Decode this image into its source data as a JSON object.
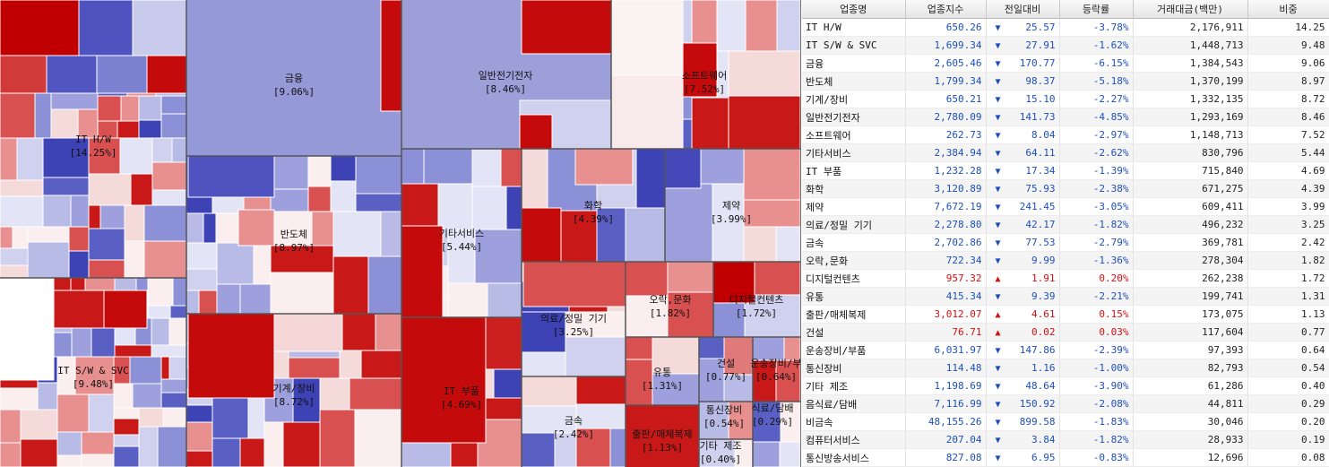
{
  "treemap": {
    "sectors": [
      {
        "name": "IT H/W",
        "weight": "[14.25%]"
      },
      {
        "name": "IT S/W & SVC",
        "weight": "[9.48%]"
      },
      {
        "name": "금융",
        "weight": "[9.06%]"
      },
      {
        "name": "반도체",
        "weight": "[8.97%]"
      },
      {
        "name": "기계/장비",
        "weight": "[8.72%]"
      },
      {
        "name": "일반전기전자",
        "weight": "[8.46%]"
      },
      {
        "name": "소프트웨어",
        "weight": "[7.52%]"
      },
      {
        "name": "기타서비스",
        "weight": "[5.44%]"
      },
      {
        "name": "IT 부품",
        "weight": "[4.69%]"
      },
      {
        "name": "화학",
        "weight": "[4.39%]"
      },
      {
        "name": "제약",
        "weight": "[3.99%]"
      },
      {
        "name": "의료/정밀 기기",
        "weight": "[3.25%]"
      },
      {
        "name": "금속",
        "weight": "[2.42%]"
      },
      {
        "name": "오락,문화",
        "weight": "[1.82%]"
      },
      {
        "name": "디지털컨텐츠",
        "weight": "[1.72%]"
      },
      {
        "name": "유통",
        "weight": "[1.31%]"
      },
      {
        "name": "출판/매체복제",
        "weight": "[1.13%]"
      },
      {
        "name": "건설",
        "weight": "[0.77%]"
      },
      {
        "name": "운송장비/부",
        "weight": "[0.64%]"
      },
      {
        "name": "통신장비",
        "weight": "[0.54%]"
      },
      {
        "name": "식료/담배",
        "weight": "[0.29%]"
      },
      {
        "name": "기타 제조",
        "weight": "[0.40%]"
      }
    ]
  },
  "table": {
    "headers": [
      "업종명",
      "업종지수",
      "전일대비",
      "등락률",
      "거래대금(백만)",
      "비중"
    ],
    "rows": [
      {
        "name": "IT H/W",
        "index": "650.26",
        "dir": "down",
        "change": "25.57",
        "rate": "-3.78%",
        "amount": "2,176,911",
        "weight": "14.25"
      },
      {
        "name": "IT S/W & SVC",
        "index": "1,699.34",
        "dir": "down",
        "change": "27.91",
        "rate": "-1.62%",
        "amount": "1,448,713",
        "weight": "9.48"
      },
      {
        "name": "금융",
        "index": "2,605.46",
        "dir": "down",
        "change": "170.77",
        "rate": "-6.15%",
        "amount": "1,384,543",
        "weight": "9.06"
      },
      {
        "name": "반도체",
        "index": "1,799.34",
        "dir": "down",
        "change": "98.37",
        "rate": "-5.18%",
        "amount": "1,370,199",
        "weight": "8.97"
      },
      {
        "name": "기계/장비",
        "index": "650.21",
        "dir": "down",
        "change": "15.10",
        "rate": "-2.27%",
        "amount": "1,332,135",
        "weight": "8.72"
      },
      {
        "name": "일반전기전자",
        "index": "2,780.09",
        "dir": "down",
        "change": "141.73",
        "rate": "-4.85%",
        "amount": "1,293,169",
        "weight": "8.46"
      },
      {
        "name": "소프트웨어",
        "index": "262.73",
        "dir": "down",
        "change": "8.04",
        "rate": "-2.97%",
        "amount": "1,148,713",
        "weight": "7.52"
      },
      {
        "name": "기타서비스",
        "index": "2,384.94",
        "dir": "down",
        "change": "64.11",
        "rate": "-2.62%",
        "amount": "830,796",
        "weight": "5.44"
      },
      {
        "name": "IT 부품",
        "index": "1,232.28",
        "dir": "down",
        "change": "17.34",
        "rate": "-1.39%",
        "amount": "715,840",
        "weight": "4.69"
      },
      {
        "name": "화학",
        "index": "3,120.89",
        "dir": "down",
        "change": "75.93",
        "rate": "-2.38%",
        "amount": "671,275",
        "weight": "4.39"
      },
      {
        "name": "제약",
        "index": "7,672.19",
        "dir": "down",
        "change": "241.45",
        "rate": "-3.05%",
        "amount": "609,411",
        "weight": "3.99"
      },
      {
        "name": "의료/정밀 기기",
        "index": "2,278.80",
        "dir": "down",
        "change": "42.17",
        "rate": "-1.82%",
        "amount": "496,232",
        "weight": "3.25"
      },
      {
        "name": "금속",
        "index": "2,702.86",
        "dir": "down",
        "change": "77.53",
        "rate": "-2.79%",
        "amount": "369,781",
        "weight": "2.42"
      },
      {
        "name": "오락,문화",
        "index": "722.34",
        "dir": "down",
        "change": "9.99",
        "rate": "-1.36%",
        "amount": "278,304",
        "weight": "1.82"
      },
      {
        "name": "디지털컨텐츠",
        "index": "957.32",
        "dir": "up",
        "change": "1.91",
        "rate": "0.20%",
        "amount": "262,238",
        "weight": "1.72"
      },
      {
        "name": "유통",
        "index": "415.34",
        "dir": "down",
        "change": "9.39",
        "rate": "-2.21%",
        "amount": "199,741",
        "weight": "1.31"
      },
      {
        "name": "출판/매체복제",
        "index": "3,012.07",
        "dir": "up",
        "change": "4.61",
        "rate": "0.15%",
        "amount": "173,075",
        "weight": "1.13"
      },
      {
        "name": "건설",
        "index": "76.71",
        "dir": "up",
        "change": "0.02",
        "rate": "0.03%",
        "amount": "117,604",
        "weight": "0.77"
      },
      {
        "name": "운송장비/부품",
        "index": "6,031.97",
        "dir": "down",
        "change": "147.86",
        "rate": "-2.39%",
        "amount": "97,393",
        "weight": "0.64"
      },
      {
        "name": "통신장비",
        "index": "114.48",
        "dir": "down",
        "change": "1.16",
        "rate": "-1.00%",
        "amount": "82,793",
        "weight": "0.54"
      },
      {
        "name": "기타 제조",
        "index": "1,198.69",
        "dir": "down",
        "change": "48.64",
        "rate": "-3.90%",
        "amount": "61,286",
        "weight": "0.40"
      },
      {
        "name": "음식료/담배",
        "index": "7,116.99",
        "dir": "down",
        "change": "150.92",
        "rate": "-2.08%",
        "amount": "44,811",
        "weight": "0.29"
      },
      {
        "name": "비금속",
        "index": "48,155.26",
        "dir": "down",
        "change": "899.58",
        "rate": "-1.83%",
        "amount": "30,046",
        "weight": "0.20"
      },
      {
        "name": "컴퓨터서비스",
        "index": "207.04",
        "dir": "down",
        "change": "3.84",
        "rate": "-1.82%",
        "amount": "28,933",
        "weight": "0.19"
      },
      {
        "name": "통신방송서비스",
        "index": "827.08",
        "dir": "down",
        "change": "6.95",
        "rate": "-0.83%",
        "amount": "12,696",
        "weight": "0.08"
      }
    ]
  },
  "colors": {
    "down": "#1d4fb8",
    "up": "#d01010",
    "strong_red": "#c00000",
    "strong_blue": "#3b3fb8"
  },
  "icons": {
    "down": "down-triangle-icon",
    "up": "up-triangle-icon"
  }
}
